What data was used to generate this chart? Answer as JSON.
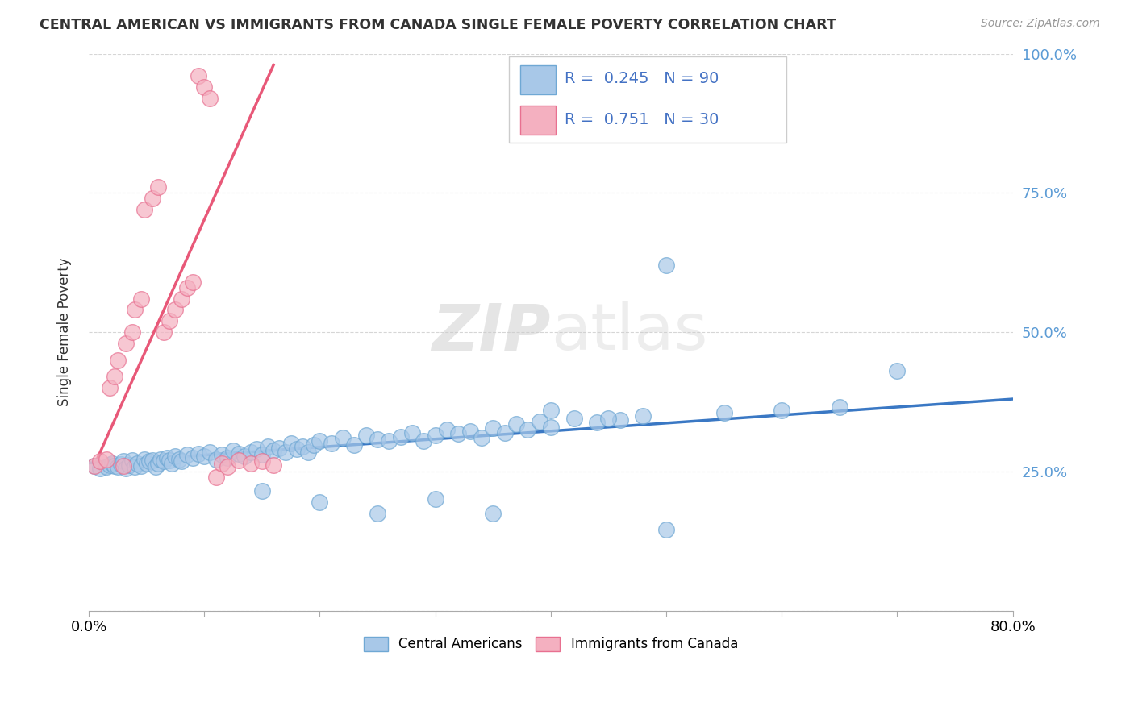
{
  "title": "CENTRAL AMERICAN VS IMMIGRANTS FROM CANADA SINGLE FEMALE POVERTY CORRELATION CHART",
  "source": "Source: ZipAtlas.com",
  "ylabel": "Single Female Poverty",
  "watermark": "ZIPatlas",
  "xmin": 0.0,
  "xmax": 0.8,
  "ymin": 0.0,
  "ymax": 1.0,
  "xticks": [
    0.0,
    0.1,
    0.2,
    0.3,
    0.4,
    0.5,
    0.6,
    0.7,
    0.8
  ],
  "yticks": [
    0.0,
    0.25,
    0.5,
    0.75,
    1.0
  ],
  "blue_R": 0.245,
  "blue_N": 90,
  "pink_R": 0.751,
  "pink_N": 30,
  "blue_color": "#A8C8E8",
  "pink_color": "#F4B0C0",
  "blue_edge_color": "#6FA8D4",
  "pink_edge_color": "#E87090",
  "blue_line_color": "#3A78C4",
  "pink_line_color": "#E85878",
  "blue_scatter_x": [
    0.005,
    0.01,
    0.015,
    0.018,
    0.02,
    0.022,
    0.025,
    0.028,
    0.03,
    0.032,
    0.035,
    0.038,
    0.04,
    0.042,
    0.045,
    0.048,
    0.05,
    0.052,
    0.055,
    0.058,
    0.06,
    0.062,
    0.065,
    0.068,
    0.07,
    0.072,
    0.075,
    0.078,
    0.08,
    0.085,
    0.09,
    0.095,
    0.1,
    0.105,
    0.11,
    0.115,
    0.12,
    0.125,
    0.13,
    0.135,
    0.14,
    0.145,
    0.15,
    0.155,
    0.16,
    0.165,
    0.17,
    0.175,
    0.18,
    0.185,
    0.19,
    0.195,
    0.2,
    0.21,
    0.22,
    0.23,
    0.24,
    0.25,
    0.26,
    0.27,
    0.28,
    0.29,
    0.3,
    0.31,
    0.32,
    0.33,
    0.34,
    0.35,
    0.36,
    0.37,
    0.38,
    0.39,
    0.4,
    0.42,
    0.44,
    0.46,
    0.48,
    0.5,
    0.55,
    0.6,
    0.65,
    0.7,
    0.15,
    0.2,
    0.25,
    0.3,
    0.35,
    0.4,
    0.45,
    0.5
  ],
  "blue_scatter_y": [
    0.26,
    0.255,
    0.258,
    0.262,
    0.265,
    0.26,
    0.258,
    0.263,
    0.268,
    0.255,
    0.262,
    0.27,
    0.258,
    0.265,
    0.26,
    0.272,
    0.265,
    0.268,
    0.27,
    0.258,
    0.265,
    0.272,
    0.268,
    0.275,
    0.27,
    0.265,
    0.278,
    0.272,
    0.268,
    0.28,
    0.275,
    0.282,
    0.278,
    0.285,
    0.272,
    0.28,
    0.275,
    0.288,
    0.282,
    0.278,
    0.285,
    0.29,
    0.28,
    0.295,
    0.288,
    0.292,
    0.285,
    0.3,
    0.29,
    0.295,
    0.285,
    0.298,
    0.305,
    0.3,
    0.31,
    0.298,
    0.315,
    0.308,
    0.305,
    0.312,
    0.32,
    0.305,
    0.315,
    0.325,
    0.318,
    0.322,
    0.31,
    0.328,
    0.32,
    0.335,
    0.325,
    0.34,
    0.33,
    0.345,
    0.338,
    0.342,
    0.35,
    0.62,
    0.355,
    0.36,
    0.365,
    0.43,
    0.215,
    0.195,
    0.175,
    0.2,
    0.175,
    0.36,
    0.345,
    0.145
  ],
  "pink_scatter_x": [
    0.005,
    0.01,
    0.015,
    0.018,
    0.022,
    0.025,
    0.03,
    0.032,
    0.038,
    0.04,
    0.045,
    0.048,
    0.055,
    0.06,
    0.065,
    0.07,
    0.075,
    0.08,
    0.085,
    0.09,
    0.095,
    0.1,
    0.105,
    0.11,
    0.115,
    0.12,
    0.13,
    0.14,
    0.15,
    0.16
  ],
  "pink_scatter_y": [
    0.26,
    0.268,
    0.272,
    0.4,
    0.42,
    0.45,
    0.26,
    0.48,
    0.5,
    0.54,
    0.56,
    0.72,
    0.74,
    0.76,
    0.5,
    0.52,
    0.54,
    0.56,
    0.58,
    0.59,
    0.96,
    0.94,
    0.92,
    0.24,
    0.265,
    0.258,
    0.27,
    0.265,
    0.268,
    0.262
  ],
  "blue_line_x": [
    0.0,
    0.8
  ],
  "blue_line_y": [
    0.265,
    0.38
  ],
  "pink_line_x": [
    0.005,
    0.16
  ],
  "pink_line_y": [
    0.262,
    0.98
  ]
}
